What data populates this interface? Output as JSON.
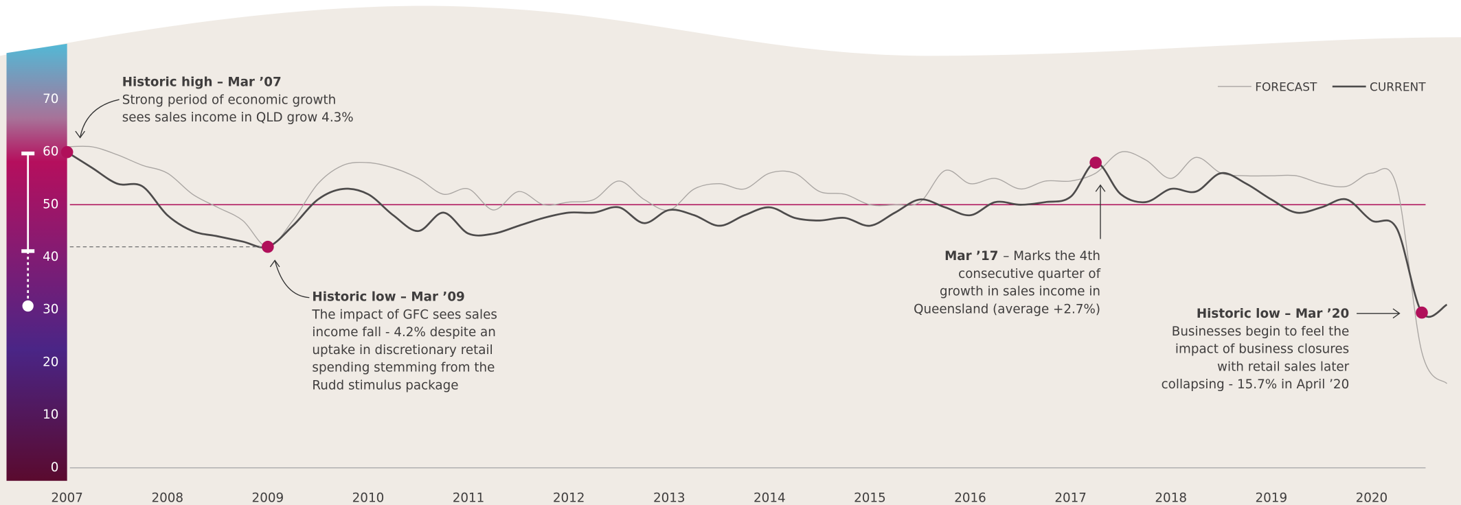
{
  "chart_data": {
    "type": "line",
    "x": [
      2007,
      2007.25,
      2007.5,
      2007.75,
      2008,
      2008.25,
      2008.5,
      2008.75,
      2009,
      2009.25,
      2009.5,
      2009.75,
      2010,
      2010.25,
      2010.5,
      2010.75,
      2011,
      2011.25,
      2011.5,
      2011.75,
      2012,
      2012.25,
      2012.5,
      2012.75,
      2013,
      2013.25,
      2013.5,
      2013.75,
      2014,
      2014.25,
      2014.5,
      2014.75,
      2015,
      2015.25,
      2015.5,
      2015.75,
      2016,
      2016.25,
      2016.5,
      2016.75,
      2017,
      2017.25,
      2017.5,
      2017.75,
      2018,
      2018.25,
      2018.5,
      2018.75,
      2019,
      2019.25,
      2019.5,
      2019.75,
      2020,
      2020.25,
      2020.5,
      2020.75
    ],
    "series": [
      {
        "name": "FORECAST",
        "color": "#a9a5a2",
        "width": 1,
        "values": [
          61,
          61,
          59.5,
          57.5,
          56,
          52,
          49.5,
          47,
          42,
          47,
          54,
          57.5,
          58,
          57,
          55,
          52,
          53,
          49,
          52.5,
          50,
          50.5,
          51,
          54.5,
          51,
          49,
          53,
          54,
          53,
          56,
          56,
          52.5,
          52,
          50,
          50,
          50.5,
          56.5,
          54,
          55,
          53,
          54.5,
          54.5,
          56,
          60,
          58.5,
          55,
          59,
          56,
          55.5,
          55.5,
          55.5,
          54,
          53.5,
          56,
          53.5,
          22,
          16
        ]
      },
      {
        "name": "CURRENT",
        "color": "#4d4b4b",
        "width": 2,
        "values": [
          60,
          57,
          54,
          53.5,
          48,
          45,
          44,
          43,
          42,
          46,
          51,
          53,
          52,
          48,
          45,
          48.5,
          44.5,
          44.5,
          46,
          47.5,
          48.5,
          48.5,
          49.5,
          46.5,
          49,
          48,
          46,
          48,
          49.5,
          47.5,
          47,
          47.5,
          46,
          48.5,
          51,
          49.5,
          48,
          50.5,
          50,
          50.5,
          51.5,
          58,
          52,
          50.5,
          53,
          52.5,
          56,
          54,
          51,
          48.5,
          49.5,
          51,
          47,
          45.5,
          29.5,
          31
        ]
      }
    ],
    "xlim": [
      2007,
      2021
    ],
    "xticks": [
      2007,
      2008,
      2009,
      2010,
      2011,
      2012,
      2013,
      2014,
      2015,
      2016,
      2017,
      2018,
      2019,
      2020
    ],
    "ylim": [
      0,
      80
    ],
    "yticks": [
      0,
      10,
      20,
      30,
      40,
      50,
      60,
      70
    ],
    "reference_line": {
      "value": 50,
      "color": "#b0175e"
    },
    "marker_color": "#b0105a",
    "legend": "top-right",
    "annotations": [
      {
        "x": 2007,
        "y": 60,
        "label": "Historic high – Mar ’07",
        "lines": [
          "Strong period of economic growth",
          "sees sales income in QLD grow 4.3%"
        ]
      },
      {
        "x": 2009,
        "y": 42,
        "label": "Historic low – Mar ’09",
        "lines": [
          "The impact of GFC sees sales",
          "income fall - 4.2% despite an",
          "uptake in discretionary retail",
          "spending stemming from the",
          "Rudd stimulus package"
        ]
      },
      {
        "x": 2017.25,
        "y": 58,
        "label": "Mar ’17",
        "lines": [
          "– Marks the 4th",
          "consecutive quarter of",
          "growth in sales income in",
          "Queensland (average +2.7%)"
        ]
      },
      {
        "x": 2020.5,
        "y": 29.5,
        "label": "Historic low – Mar ’20",
        "lines": [
          "Businesses begin to feel the",
          "impact of business closures",
          "with retail sales later",
          "collapsing - 15.7% in April ’20"
        ]
      }
    ]
  }
}
